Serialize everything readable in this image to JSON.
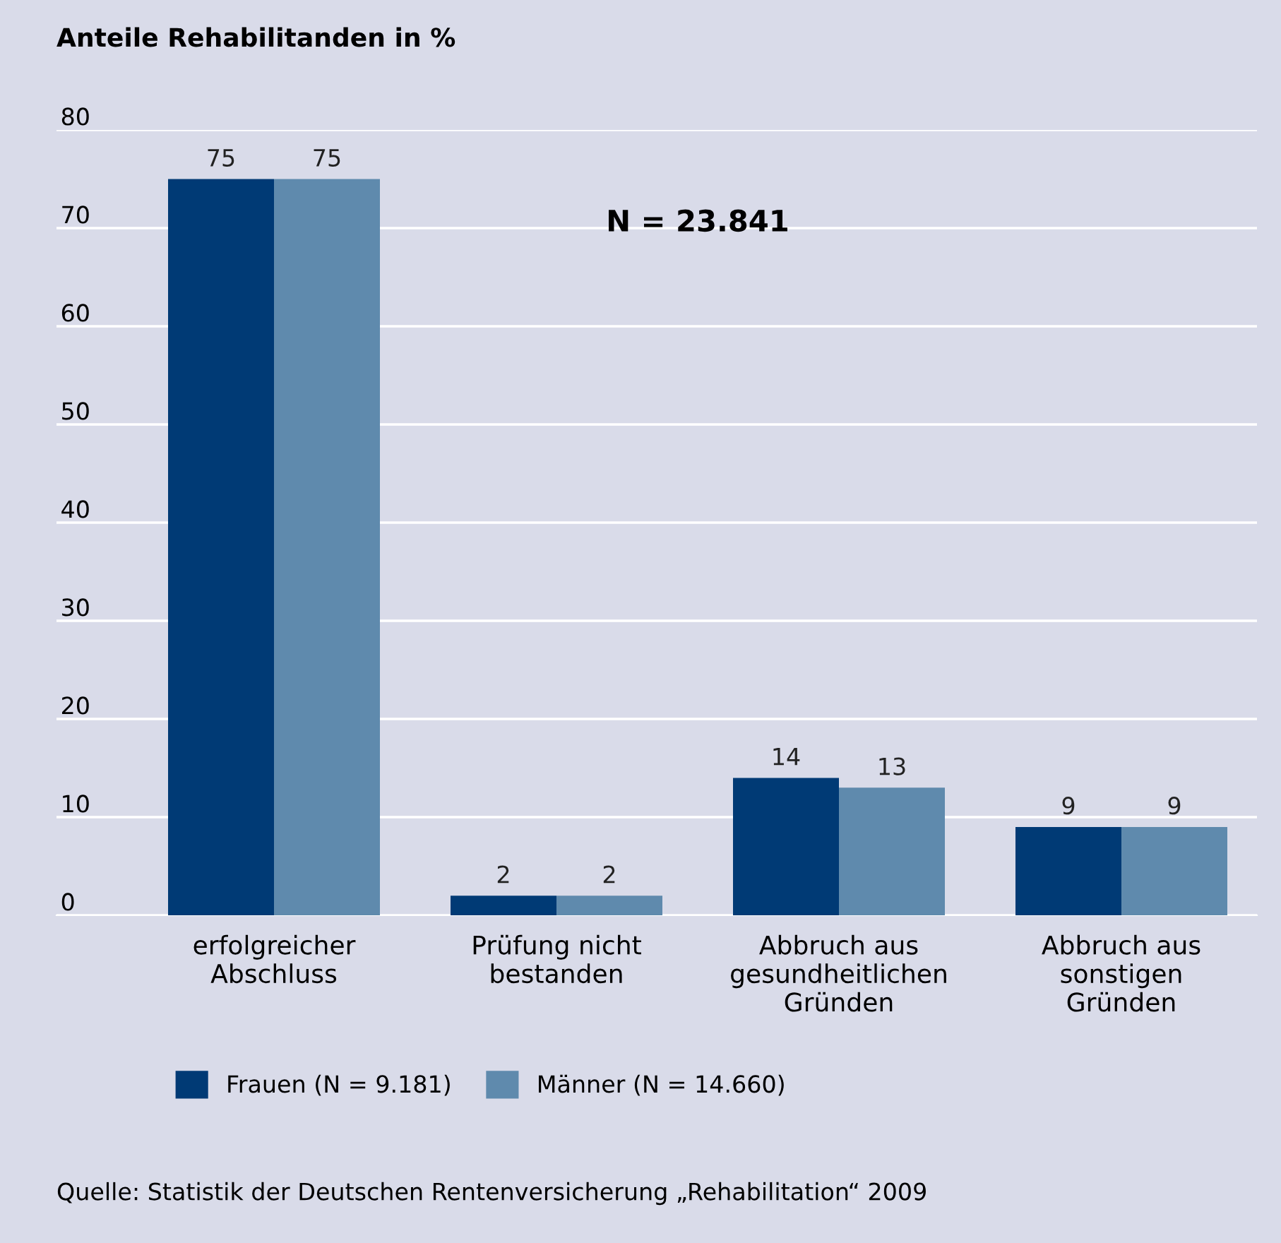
{
  "chart_data": {
    "type": "bar",
    "title": "Anteile Rehabilitanden in %",
    "categories": [
      "erfolgreicher\nAbschluss",
      "Prüfung nicht\nbestanden",
      "Abbruch aus\ngesundheitlichen\nGründen",
      "Abbruch aus\nsonstigen\nGründen"
    ],
    "series": [
      {
        "name": "Frauen (N = 9.181)",
        "color": "#003a75",
        "values": [
          75,
          2,
          14,
          9
        ]
      },
      {
        "name": "Männer (N = 14.660)",
        "color": "#5f8aad",
        "values": [
          75,
          2,
          13,
          9
        ]
      }
    ],
    "ylim": [
      0,
      80
    ],
    "yticks": [
      0,
      10,
      20,
      30,
      40,
      50,
      60,
      70,
      80
    ],
    "grid": "y",
    "legend": "bottom",
    "data_labels": true,
    "annotations": [
      "N = 23.841",
      "Quelle: Statistik der Deutschen Rentenversicherung „Rehabilitation“ 2009"
    ]
  }
}
